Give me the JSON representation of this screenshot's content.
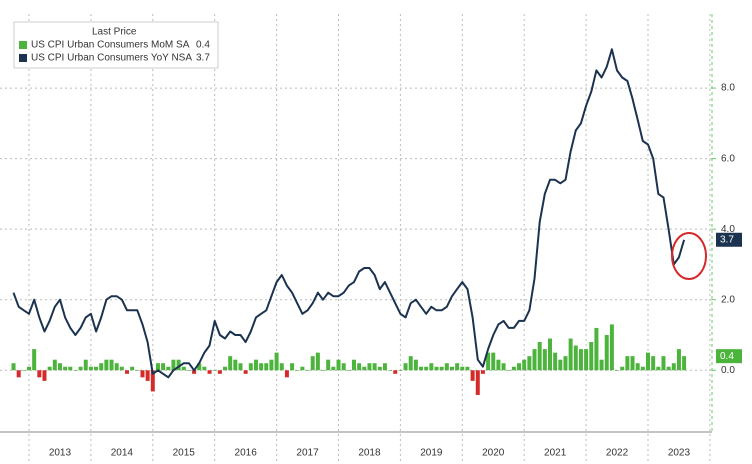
{
  "chart_data": {
    "type": "combo",
    "legend_title": "Last Price",
    "legend_position": "top-left",
    "grid": true,
    "ylim": [
      -1.75,
      10.1
    ],
    "yticks": [
      {
        "value": 0,
        "label": "0.0"
      },
      {
        "value": 2,
        "label": "2.0"
      },
      {
        "value": 4,
        "label": "4.0"
      },
      {
        "value": 6,
        "label": "6.0"
      },
      {
        "value": 8,
        "label": "8.0"
      }
    ],
    "year_labels": [
      "2013",
      "2014",
      "2015",
      "2016",
      "2017",
      "2018",
      "2019",
      "2020",
      "2021",
      "2022",
      "2023"
    ],
    "categories": [
      null,
      null,
      null,
      null,
      null,
      null,
      null,
      null,
      null,
      null,
      null,
      null,
      null,
      null,
      null,
      null,
      null,
      null,
      null,
      null,
      null,
      null,
      null,
      null,
      null,
      null,
      null,
      null,
      null,
      null,
      null,
      null,
      null,
      null,
      null,
      null,
      null,
      null,
      null,
      null,
      null,
      null,
      null,
      null,
      null,
      null,
      null,
      null,
      null,
      null,
      null,
      null,
      null,
      null,
      null,
      null,
      null,
      null,
      null,
      null,
      null,
      null,
      null,
      null,
      null,
      null,
      null,
      null,
      null,
      null,
      null,
      null,
      null,
      null,
      null,
      null,
      null,
      null,
      null,
      null,
      null,
      null,
      null,
      null,
      null,
      null,
      null,
      null,
      null,
      null,
      null,
      null,
      null,
      null,
      null,
      null,
      null,
      null,
      null,
      null,
      null,
      null,
      null,
      null,
      null,
      null,
      null,
      null,
      null,
      null,
      null,
      null,
      null,
      null,
      null,
      null,
      null,
      null,
      null,
      null,
      null,
      null,
      null,
      null,
      null,
      null,
      null,
      null,
      null,
      null,
      null
    ],
    "series": [
      {
        "name": "US CPI Urban Consumers MoM SA",
        "kind": "bar",
        "color": "#4cb43c",
        "negative_color": "#d42a2a",
        "values": [
          0.2,
          -0.2,
          0.0,
          0.1,
          0.6,
          -0.2,
          -0.3,
          0.1,
          0.3,
          0.2,
          0.1,
          0.1,
          0.0,
          0.1,
          0.3,
          0.1,
          0.1,
          0.2,
          0.3,
          0.3,
          0.2,
          0.1,
          -0.1,
          0.1,
          0.0,
          -0.2,
          -0.3,
          -0.6,
          0.2,
          0.2,
          0.1,
          0.3,
          0.3,
          0.1,
          0.0,
          -0.1,
          0.2,
          0.1,
          -0.1,
          0.0,
          -0.1,
          0.1,
          0.4,
          0.3,
          0.2,
          -0.1,
          0.2,
          0.3,
          0.2,
          0.2,
          0.3,
          0.5,
          0.2,
          -0.2,
          0.2,
          0.0,
          0.1,
          0.0,
          0.4,
          0.5,
          0.0,
          0.3,
          0.1,
          0.3,
          0.2,
          0.0,
          0.3,
          0.2,
          0.1,
          0.2,
          0.2,
          0.1,
          0.2,
          0.0,
          -0.1,
          0.0,
          0.2,
          0.4,
          0.3,
          0.1,
          0.1,
          0.2,
          0.1,
          0.1,
          0.2,
          0.1,
          0.2,
          0.1,
          0.1,
          -0.3,
          -0.7,
          -0.1,
          0.5,
          0.5,
          0.3,
          0.2,
          0.0,
          0.1,
          0.2,
          0.3,
          0.4,
          0.6,
          0.8,
          0.6,
          0.9,
          0.5,
          0.3,
          0.4,
          0.9,
          0.7,
          0.6,
          0.6,
          0.8,
          1.2,
          0.3,
          1.0,
          1.3,
          0.0,
          0.1,
          0.4,
          0.4,
          0.2,
          0.1,
          0.5,
          0.4,
          0.1,
          0.4,
          0.1,
          0.2,
          0.6,
          0.4
        ]
      },
      {
        "name": "US CPI Urban Consumers YoY NSA",
        "kind": "line",
        "color": "#1c3350",
        "values": [
          2.2,
          1.8,
          1.7,
          1.6,
          2.0,
          1.5,
          1.1,
          1.4,
          1.8,
          2.0,
          1.5,
          1.2,
          1.0,
          1.2,
          1.5,
          1.6,
          1.1,
          1.5,
          2.0,
          2.1,
          2.1,
          2.0,
          1.7,
          1.7,
          1.7,
          1.3,
          0.8,
          -0.1,
          0.0,
          -0.1,
          -0.2,
          0.0,
          0.1,
          0.2,
          0.2,
          0.0,
          0.2,
          0.5,
          0.7,
          1.4,
          1.0,
          0.9,
          1.1,
          1.0,
          1.0,
          0.8,
          1.1,
          1.5,
          1.6,
          1.7,
          2.1,
          2.5,
          2.7,
          2.4,
          2.2,
          1.9,
          1.6,
          1.7,
          1.9,
          2.2,
          2.0,
          2.2,
          2.1,
          2.1,
          2.2,
          2.4,
          2.5,
          2.8,
          2.9,
          2.9,
          2.7,
          2.3,
          2.5,
          2.2,
          1.9,
          1.6,
          1.5,
          1.9,
          2.0,
          1.8,
          1.6,
          1.8,
          1.7,
          1.7,
          1.8,
          2.1,
          2.3,
          2.5,
          2.3,
          1.5,
          0.3,
          0.1,
          0.6,
          1.0,
          1.3,
          1.4,
          1.2,
          1.2,
          1.4,
          1.4,
          1.7,
          2.6,
          4.2,
          5.0,
          5.4,
          5.4,
          5.3,
          5.4,
          6.2,
          6.8,
          7.0,
          7.5,
          7.9,
          8.5,
          8.3,
          8.6,
          9.1,
          8.5,
          8.3,
          8.2,
          7.7,
          7.1,
          6.5,
          6.4,
          6.0,
          5.0,
          4.9,
          4.0,
          3.0,
          3.2,
          3.7
        ]
      }
    ]
  }
}
